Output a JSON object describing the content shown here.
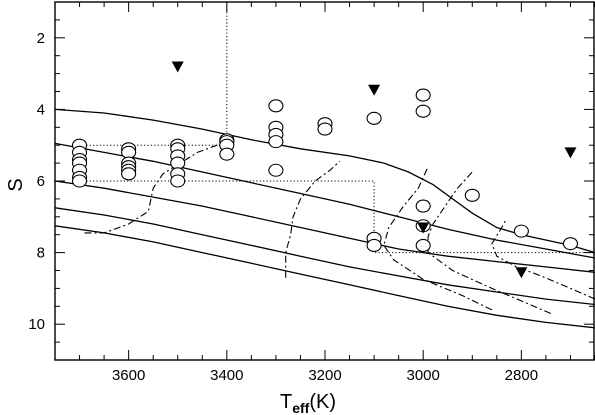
{
  "chart_data": {
    "type": "scatter",
    "xlabel": "T",
    "xlabel_sub": "eff",
    "xlabel_unit": "(K)",
    "ylabel": "S",
    "xlim": [
      3750,
      2650
    ],
    "ylim": [
      11,
      1
    ],
    "x_reversed": true,
    "y_reversed": true,
    "x_ticks": [
      3600,
      3400,
      3200,
      3000,
      2800
    ],
    "y_ticks": [
      2,
      4,
      6,
      8,
      10
    ],
    "x_tick_labels": [
      "3600",
      "3400",
      "3200",
      "3000",
      "2800"
    ],
    "y_tick_labels": [
      "2",
      "4",
      "6",
      "8",
      "10"
    ],
    "grid": false,
    "marker_colors": {
      "circle": "#000000",
      "triangle": "#000000"
    },
    "circles": [
      {
        "x": 3700,
        "y": 5.0
      },
      {
        "x": 3700,
        "y": 5.2
      },
      {
        "x": 3700,
        "y": 5.4
      },
      {
        "x": 3700,
        "y": 5.5
      },
      {
        "x": 3700,
        "y": 5.7
      },
      {
        "x": 3700,
        "y": 5.9
      },
      {
        "x": 3700,
        "y": 6.0
      },
      {
        "x": 3600,
        "y": 5.1
      },
      {
        "x": 3600,
        "y": 5.2
      },
      {
        "x": 3600,
        "y": 5.5
      },
      {
        "x": 3600,
        "y": 5.6
      },
      {
        "x": 3600,
        "y": 5.7
      },
      {
        "x": 3600,
        "y": 5.8
      },
      {
        "x": 3500,
        "y": 5.0
      },
      {
        "x": 3500,
        "y": 5.1
      },
      {
        "x": 3500,
        "y": 5.3
      },
      {
        "x": 3500,
        "y": 5.5
      },
      {
        "x": 3500,
        "y": 5.8
      },
      {
        "x": 3500,
        "y": 6.0
      },
      {
        "x": 3400,
        "y": 4.85
      },
      {
        "x": 3400,
        "y": 4.9
      },
      {
        "x": 3400,
        "y": 5.0
      },
      {
        "x": 3400,
        "y": 5.25
      },
      {
        "x": 3300,
        "y": 3.9
      },
      {
        "x": 3300,
        "y": 4.5
      },
      {
        "x": 3300,
        "y": 4.7
      },
      {
        "x": 3300,
        "y": 4.9
      },
      {
        "x": 3300,
        "y": 5.7
      },
      {
        "x": 3200,
        "y": 4.4
      },
      {
        "x": 3200,
        "y": 4.55
      },
      {
        "x": 3100,
        "y": 4.25
      },
      {
        "x": 3100,
        "y": 7.6
      },
      {
        "x": 3100,
        "y": 7.8
      },
      {
        "x": 3000,
        "y": 3.6
      },
      {
        "x": 3000,
        "y": 4.05
      },
      {
        "x": 3000,
        "y": 6.7
      },
      {
        "x": 3000,
        "y": 7.25
      },
      {
        "x": 3000,
        "y": 7.8
      },
      {
        "x": 2900,
        "y": 6.4
      },
      {
        "x": 2800,
        "y": 7.4
      },
      {
        "x": 2700,
        "y": 7.75
      }
    ],
    "triangles": [
      {
        "x": 3500,
        "y": 2.8
      },
      {
        "x": 3100,
        "y": 3.45
      },
      {
        "x": 3000,
        "y": 7.3
      },
      {
        "x": 2800,
        "y": 8.55
      },
      {
        "x": 2700,
        "y": 5.2
      }
    ],
    "solid_curves": [
      [
        [
          3750,
          4.0
        ],
        [
          3650,
          4.1
        ],
        [
          3550,
          4.3
        ],
        [
          3450,
          4.55
        ],
        [
          3350,
          4.85
        ],
        [
          3250,
          5.1
        ],
        [
          3150,
          5.3
        ],
        [
          3080,
          5.5
        ],
        [
          3030,
          5.75
        ],
        [
          2980,
          6.1
        ],
        [
          2940,
          6.5
        ],
        [
          2900,
          6.9
        ],
        [
          2850,
          7.3
        ],
        [
          2800,
          7.5
        ],
        [
          2700,
          7.8
        ],
        [
          2650,
          8.0
        ]
      ],
      [
        [
          3750,
          4.95
        ],
        [
          3650,
          5.2
        ],
        [
          3550,
          5.45
        ],
        [
          3450,
          5.75
        ],
        [
          3350,
          6.05
        ],
        [
          3250,
          6.35
        ],
        [
          3150,
          6.65
        ],
        [
          3050,
          7.0
        ],
        [
          2950,
          7.35
        ],
        [
          2850,
          7.65
        ],
        [
          2750,
          7.9
        ],
        [
          2650,
          8.15
        ]
      ],
      [
        [
          3750,
          6.0
        ],
        [
          3650,
          6.2
        ],
        [
          3550,
          6.45
        ],
        [
          3450,
          6.7
        ],
        [
          3350,
          7.0
        ],
        [
          3250,
          7.3
        ],
        [
          3150,
          7.6
        ],
        [
          3050,
          7.9
        ],
        [
          2950,
          8.1
        ],
        [
          2850,
          8.25
        ],
        [
          2750,
          8.4
        ],
        [
          2650,
          8.55
        ]
      ],
      [
        [
          3750,
          6.75
        ],
        [
          3650,
          6.95
        ],
        [
          3550,
          7.2
        ],
        [
          3450,
          7.5
        ],
        [
          3350,
          7.8
        ],
        [
          3250,
          8.1
        ],
        [
          3150,
          8.4
        ],
        [
          3050,
          8.65
        ],
        [
          2950,
          8.9
        ],
        [
          2850,
          9.1
        ],
        [
          2750,
          9.3
        ],
        [
          2650,
          9.45
        ]
      ],
      [
        [
          3750,
          7.25
        ],
        [
          3650,
          7.45
        ],
        [
          3550,
          7.7
        ],
        [
          3450,
          8.0
        ],
        [
          3350,
          8.3
        ],
        [
          3250,
          8.6
        ],
        [
          3150,
          8.9
        ],
        [
          3050,
          9.2
        ],
        [
          2950,
          9.5
        ],
        [
          2850,
          9.75
        ],
        [
          2750,
          9.95
        ],
        [
          2650,
          10.1
        ]
      ]
    ],
    "dashed_curves": [
      [
        [
          3690,
          7.45
        ],
        [
          3650,
          7.45
        ],
        [
          3600,
          7.2
        ],
        [
          3560,
          6.85
        ],
        [
          3550,
          6.2
        ],
        [
          3530,
          5.8
        ],
        [
          3460,
          5.2
        ],
        [
          3390,
          4.85
        ]
      ],
      [
        [
          3280,
          8.7
        ],
        [
          3280,
          8.0
        ],
        [
          3270,
          7.5
        ],
        [
          3265,
          7.0
        ],
        [
          3250,
          6.5
        ],
        [
          3220,
          6.0
        ],
        [
          3190,
          5.7
        ],
        [
          3170,
          5.45
        ]
      ],
      [
        [
          2860,
          9.6
        ],
        [
          2920,
          9.2
        ],
        [
          3000,
          8.75
        ],
        [
          3060,
          8.2
        ],
        [
          3080,
          7.8
        ],
        [
          3070,
          7.3
        ],
        [
          3040,
          6.7
        ],
        [
          3010,
          6.2
        ],
        [
          2990,
          5.6
        ]
      ],
      [
        [
          2740,
          9.7
        ],
        [
          2800,
          9.35
        ],
        [
          2860,
          9.0
        ],
        [
          2940,
          8.5
        ],
        [
          2990,
          8.0
        ],
        [
          2990,
          7.55
        ],
        [
          2980,
          7.2
        ],
        [
          2960,
          6.8
        ],
        [
          2930,
          6.2
        ],
        [
          2900,
          5.75
        ]
      ],
      [
        [
          2650,
          9.3
        ],
        [
          2700,
          9.0
        ],
        [
          2760,
          8.65
        ],
        [
          2810,
          8.4
        ],
        [
          2850,
          8.1
        ],
        [
          2860,
          7.75
        ],
        [
          2840,
          7.3
        ],
        [
          2830,
          7.05
        ]
      ]
    ],
    "dotted_lines": [
      [
        [
          3400,
          1
        ],
        [
          3400,
          4.9
        ]
      ],
      [
        [
          3700,
          5.0
        ],
        [
          3400,
          5.0
        ]
      ],
      [
        [
          3700,
          6.0
        ],
        [
          3100,
          6.0
        ],
        [
          3100,
          8.0
        ],
        [
          2650,
          8.0
        ]
      ]
    ]
  }
}
